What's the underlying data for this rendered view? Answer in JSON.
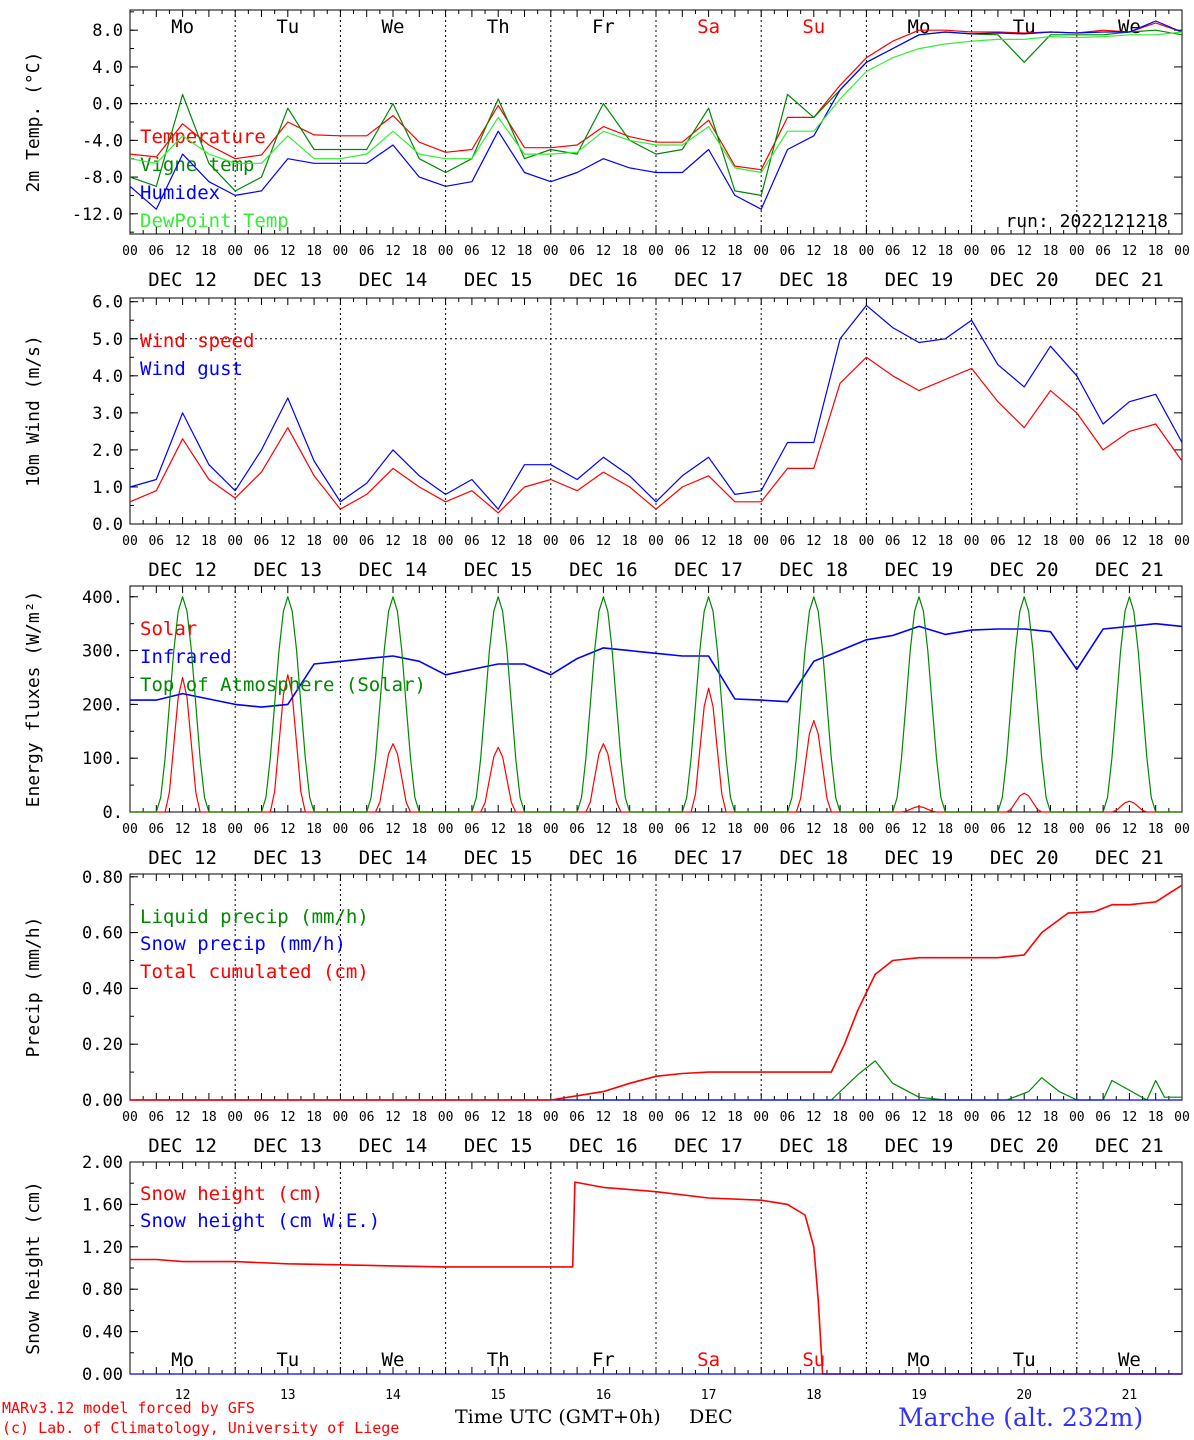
{
  "chart_data": [
    {
      "type": "line",
      "ylabel": "2m Temp. (°C)",
      "ylim": [
        -14.2,
        10.2
      ],
      "yticks": [
        8.0,
        4.0,
        0.0,
        -4.0,
        -8.0,
        -12.0
      ],
      "ytick_labels": [
        "8.0",
        "4.0",
        "0.0",
        "-4.0",
        "-8.0",
        "-12.0"
      ],
      "dashed_y": [
        0.0
      ],
      "weekday_labels": true,
      "annotation": "run: 2022121218",
      "series": [
        {
          "name": "Temperature",
          "color": "#ff0000",
          "x": [
            0,
            6,
            12,
            18,
            24,
            30,
            36,
            42,
            48,
            54,
            60,
            66,
            72,
            78,
            84,
            90,
            96,
            102,
            108,
            114,
            120,
            126,
            132,
            138,
            144,
            150,
            156,
            162,
            168,
            174,
            180,
            186,
            192,
            198,
            204,
            210,
            216,
            222,
            228,
            234,
            240
          ],
          "y": [
            -5.5,
            -5.8,
            -2.2,
            -4.5,
            -6,
            -5.6,
            -2,
            -3.4,
            -3.5,
            -3.5,
            -1.3,
            -4.2,
            -5.3,
            -5,
            -0.2,
            -4.8,
            -4.8,
            -4.5,
            -2.5,
            -3.6,
            -4.2,
            -4.2,
            -1.8,
            -6.8,
            -7.2,
            -1.5,
            -1.5,
            2,
            5,
            6.8,
            8,
            8,
            7.8,
            7.8,
            7.7,
            7.8,
            7.7,
            8,
            7.8,
            8.8,
            7.8
          ]
        },
        {
          "name": "Vigne temp",
          "color": "#008800",
          "x": [
            0,
            6,
            12,
            18,
            24,
            30,
            36,
            42,
            48,
            54,
            60,
            66,
            72,
            78,
            84,
            90,
            96,
            102,
            108,
            114,
            120,
            126,
            132,
            138,
            144,
            150,
            156,
            162,
            168,
            174,
            180,
            186,
            192,
            198,
            204,
            210,
            216,
            222,
            228,
            234,
            240
          ],
          "y": [
            -8,
            -9,
            1,
            -6.5,
            -9.5,
            -8,
            -0.5,
            -5,
            -5,
            -5,
            0,
            -6,
            -7.5,
            -6,
            0.5,
            -6,
            -5,
            -5.5,
            0,
            -4,
            -5.5,
            -5,
            -0.5,
            -9.5,
            -10,
            1,
            -1.5,
            1.5,
            4.5,
            6,
            7.5,
            7.8,
            7.6,
            7.5,
            4.5,
            7.5,
            7.5,
            7.5,
            7.8,
            8,
            7.5
          ]
        },
        {
          "name": "Humidex",
          "color": "#0000ff",
          "x": [
            0,
            6,
            12,
            18,
            24,
            30,
            36,
            42,
            48,
            54,
            60,
            66,
            72,
            78,
            84,
            90,
            96,
            102,
            108,
            114,
            120,
            126,
            132,
            138,
            144,
            150,
            156,
            162,
            168,
            174,
            180,
            186,
            192,
            198,
            204,
            210,
            216,
            222,
            228,
            234,
            240
          ],
          "y": [
            -9,
            -11.5,
            -5.5,
            -8.5,
            -10,
            -9.5,
            -6,
            -6.5,
            -6.5,
            -6.5,
            -4.5,
            -8,
            -9,
            -8.5,
            -3,
            -7.5,
            -8.5,
            -7.5,
            -6,
            -7,
            -7.5,
            -7.5,
            -5,
            -10,
            -11.5,
            -5,
            -3.5,
            1.5,
            4.5,
            6,
            7.5,
            7.8,
            7.6,
            7.7,
            7.6,
            7.8,
            7.7,
            7.8,
            7.8,
            9,
            7.8
          ]
        },
        {
          "name": "DewPoint Temp",
          "color": "#33ee33",
          "x": [
            0,
            6,
            12,
            18,
            24,
            30,
            36,
            42,
            48,
            54,
            60,
            66,
            72,
            78,
            84,
            90,
            96,
            102,
            108,
            114,
            120,
            126,
            132,
            138,
            144,
            150,
            156,
            162,
            168,
            174,
            180,
            186,
            192,
            198,
            204,
            210,
            216,
            222,
            228,
            234,
            240
          ],
          "y": [
            -6,
            -6.5,
            -3.5,
            -5.5,
            -6.5,
            -6.5,
            -3.5,
            -6,
            -6,
            -5.5,
            -3,
            -5.5,
            -6,
            -6,
            -1.5,
            -5.5,
            -5.5,
            -5.3,
            -3,
            -4,
            -4.5,
            -4.5,
            -2.5,
            -7,
            -7.5,
            -3,
            -3,
            0.5,
            3.5,
            5,
            6,
            6.5,
            6.8,
            7,
            7,
            7.3,
            7.2,
            7.3,
            7.5,
            7.5,
            7.8
          ]
        }
      ]
    },
    {
      "type": "line",
      "ylabel": "10m Wind (m/s)",
      "ylim": [
        0,
        6.1
      ],
      "yticks": [
        0,
        1,
        2,
        3,
        4,
        5,
        6
      ],
      "ytick_labels": [
        "0.0",
        "1.0",
        "2.0",
        "3.0",
        "4.0",
        "5.0",
        "6.0"
      ],
      "dashed_y": [
        5.0
      ],
      "series": [
        {
          "name": "Wind speed",
          "color": "#ff0000",
          "x": [
            0,
            6,
            12,
            18,
            24,
            30,
            36,
            42,
            48,
            54,
            60,
            66,
            72,
            78,
            84,
            90,
            96,
            102,
            108,
            114,
            120,
            126,
            132,
            138,
            144,
            150,
            156,
            162,
            168,
            174,
            180,
            186,
            192,
            198,
            204,
            210,
            216,
            222,
            228,
            234,
            240
          ],
          "y": [
            0.6,
            0.9,
            2.3,
            1.2,
            0.7,
            1.4,
            2.6,
            1.3,
            0.4,
            0.8,
            1.5,
            1.0,
            0.6,
            0.9,
            0.3,
            1.0,
            1.2,
            0.9,
            1.4,
            1.0,
            0.4,
            1.0,
            1.3,
            0.6,
            0.6,
            1.5,
            1.5,
            3.8,
            4.5,
            4.0,
            3.6,
            3.9,
            4.2,
            3.3,
            2.6,
            3.6,
            3.0,
            2.0,
            2.5,
            2.7,
            1.7
          ]
        },
        {
          "name": "Wind gust",
          "color": "#0000ff",
          "x": [
            0,
            6,
            12,
            18,
            24,
            30,
            36,
            42,
            48,
            54,
            60,
            66,
            72,
            78,
            84,
            90,
            96,
            102,
            108,
            114,
            120,
            126,
            132,
            138,
            144,
            150,
            156,
            162,
            168,
            174,
            180,
            186,
            192,
            198,
            204,
            210,
            216,
            222,
            228,
            234,
            240
          ],
          "y": [
            1.0,
            1.2,
            3.0,
            1.6,
            0.9,
            2.0,
            3.4,
            1.7,
            0.6,
            1.1,
            2.0,
            1.3,
            0.8,
            1.2,
            0.4,
            1.6,
            1.6,
            1.2,
            1.8,
            1.3,
            0.6,
            1.3,
            1.8,
            0.8,
            0.9,
            2.2,
            2.2,
            5.0,
            5.9,
            5.3,
            4.9,
            5.0,
            5.5,
            4.3,
            3.7,
            4.8,
            4.0,
            2.7,
            3.3,
            3.5,
            2.2
          ]
        }
      ]
    },
    {
      "type": "line",
      "ylabel": "Energy fluxes (W/m²)",
      "ylim": [
        0,
        420
      ],
      "yticks": [
        0,
        100,
        200,
        300,
        400
      ],
      "ytick_labels": [
        "0.",
        "100.",
        "200.",
        "300.",
        "400."
      ],
      "series": [
        {
          "name": "Solar",
          "color": "#ff0000",
          "peak_hours": [
            12,
            36,
            60,
            84,
            108,
            132,
            156,
            180,
            204,
            228
          ],
          "peaks": [
            250,
            255,
            127,
            120,
            127,
            230,
            170,
            10,
            35,
            20
          ]
        },
        {
          "name": "Infrared",
          "color": "#0000ff",
          "x": [
            0,
            6,
            12,
            18,
            24,
            30,
            36,
            42,
            48,
            54,
            60,
            66,
            72,
            78,
            84,
            90,
            96,
            102,
            108,
            114,
            120,
            126,
            132,
            138,
            144,
            150,
            156,
            162,
            168,
            174,
            180,
            186,
            192,
            198,
            204,
            210,
            216,
            222,
            228,
            234,
            240
          ],
          "y": [
            208,
            208,
            220,
            210,
            200,
            195,
            200,
            275,
            280,
            285,
            290,
            280,
            255,
            265,
            275,
            275,
            255,
            285,
            305,
            300,
            295,
            290,
            290,
            210,
            208,
            205,
            280,
            300,
            320,
            328,
            345,
            330,
            338,
            340,
            340,
            335,
            265,
            340,
            345,
            350,
            345
          ]
        },
        {
          "name": "Top of Atmosphere (Solar)",
          "color": "#008800",
          "peak_hours": [
            12,
            36,
            60,
            84,
            108,
            132,
            156,
            180,
            204,
            228
          ],
          "peaks": [
            400,
            400,
            400,
            400,
            400,
            400,
            400,
            400,
            400,
            400
          ]
        }
      ]
    },
    {
      "type": "line",
      "ylabel": "Precip (mm/h)",
      "ylim": [
        0,
        0.81
      ],
      "yticks": [
        0,
        0.2,
        0.4,
        0.6,
        0.8
      ],
      "ytick_labels": [
        "0.00",
        "0.20",
        "0.40",
        "0.60",
        "0.80"
      ],
      "series": [
        {
          "name": "Liquid precip (mm/h)",
          "color": "#008800",
          "x": [
            0,
            160,
            166,
            170,
            174,
            180,
            186,
            192,
            200,
            205,
            208,
            212,
            216,
            218,
            222,
            224,
            232,
            234,
            236,
            240
          ],
          "y": [
            0,
            0,
            0.09,
            0.14,
            0.06,
            0.01,
            0,
            0,
            0,
            0.03,
            0.08,
            0.03,
            0,
            0,
            0,
            0.07,
            0,
            0.07,
            0.01,
            0.01
          ]
        },
        {
          "name": "Snow precip (mm/h)",
          "color": "#0000ff",
          "x": [
            0,
            240
          ],
          "y": [
            0,
            0
          ]
        },
        {
          "name": "Total cumulated (cm)",
          "color": "#ff0000",
          "x": [
            0,
            72,
            96,
            100,
            108,
            114,
            120,
            126,
            132,
            144,
            156,
            160,
            163,
            166,
            170,
            174,
            180,
            186,
            192,
            198,
            204,
            208,
            214,
            220,
            224,
            228,
            234,
            240
          ],
          "y": [
            0,
            0,
            0,
            0.01,
            0.03,
            0.06,
            0.085,
            0.095,
            0.1,
            0.1,
            0.1,
            0.1,
            0.2,
            0.32,
            0.45,
            0.5,
            0.51,
            0.51,
            0.51,
            0.51,
            0.52,
            0.6,
            0.67,
            0.675,
            0.7,
            0.7,
            0.71,
            0.77
          ]
        }
      ]
    },
    {
      "type": "line",
      "ylabel": "Snow height (cm)",
      "ylim": [
        0,
        2.0
      ],
      "yticks": [
        0,
        0.4,
        0.8,
        1.2,
        1.6,
        2.0
      ],
      "ytick_labels": [
        "0.00",
        "0.40",
        "0.80",
        "1.20",
        "1.60",
        "2.00"
      ],
      "weekday_labels_bottom": true,
      "series": [
        {
          "name": "Snow height (cm)",
          "color": "#ff0000",
          "x": [
            0,
            6,
            12,
            24,
            36,
            48,
            60,
            72,
            84,
            96,
            101,
            101.5,
            108,
            120,
            132,
            144,
            150,
            154,
            156,
            157,
            158,
            240
          ],
          "y": [
            1.08,
            1.08,
            1.06,
            1.06,
            1.04,
            1.03,
            1.02,
            1.01,
            1.01,
            1.01,
            1.01,
            1.81,
            1.76,
            1.72,
            1.66,
            1.64,
            1.6,
            1.5,
            1.2,
            0.7,
            0,
            0
          ]
        },
        {
          "name": "Snow height (cm W.E.)",
          "color": "#0000ff",
          "x": [
            0,
            240
          ],
          "y": [
            0,
            0
          ]
        }
      ]
    }
  ],
  "weekdays": [
    {
      "label": "Mo",
      "color": "#000000"
    },
    {
      "label": "Tu",
      "color": "#000000"
    },
    {
      "label": "We",
      "color": "#000000"
    },
    {
      "label": "Th",
      "color": "#000000"
    },
    {
      "label": "Fr",
      "color": "#000000"
    },
    {
      "label": "Sa",
      "color": "#ff0000"
    },
    {
      "label": "Su",
      "color": "#ff0000"
    },
    {
      "label": "Mo",
      "color": "#000000"
    },
    {
      "label": "Tu",
      "color": "#000000"
    },
    {
      "label": "We",
      "color": "#000000"
    }
  ],
  "hour_labels": [
    "00",
    "06",
    "12",
    "18"
  ],
  "final_hour_label": "00",
  "date_labels": [
    "DEC 12",
    "DEC 13",
    "DEC 14",
    "DEC 15",
    "DEC 16",
    "DEC 17",
    "DEC 18",
    "DEC 19",
    "DEC 20",
    "DEC 21"
  ],
  "day_numbers": [
    "12",
    "13",
    "14",
    "15",
    "16",
    "17",
    "18",
    "19",
    "20",
    "21"
  ],
  "xlabel": "Time UTC (GMT+0h)",
  "xlabel_month": "DEC",
  "credit_line1": "MARv3.12 model forced by GFS",
  "credit_line2": "(c) Lab. of Climatology, University of Liege",
  "station": "Marche (alt. 232m)"
}
